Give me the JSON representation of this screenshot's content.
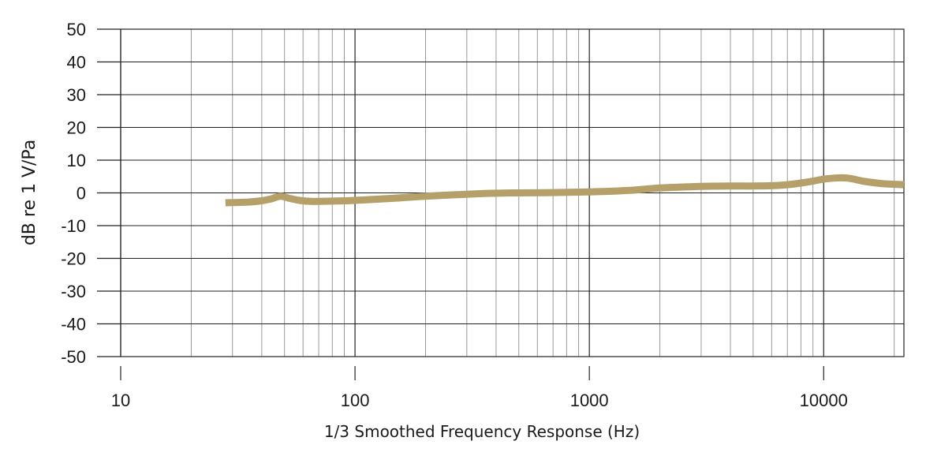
{
  "chart_data": {
    "type": "line",
    "title": "",
    "xlabel": "1/3 Smoothed Frequency Response (Hz)",
    "ylabel": "dB re 1 V/Pa",
    "xscale": "log",
    "xlim": [
      10,
      22000
    ],
    "ylim": [
      -50,
      50
    ],
    "xticks": [
      10,
      100,
      1000,
      10000
    ],
    "xtick_labels": [
      "10",
      "100",
      "1000",
      "10000"
    ],
    "yticks": [
      50,
      40,
      30,
      20,
      10,
      0,
      -10,
      -20,
      -30,
      -40,
      -50
    ],
    "ytick_labels": [
      "50",
      "40",
      "30",
      "20",
      "10",
      "0",
      "-10",
      "-20",
      "-30",
      "-40",
      "-50"
    ],
    "grid": true,
    "line_color": "#b5a06a",
    "series": [
      {
        "x": [
          28,
          35,
          40,
          44,
          48,
          52,
          58,
          65,
          80,
          100,
          150,
          200,
          300,
          400,
          500,
          700,
          1000,
          1500,
          2000,
          3000,
          4000,
          5000,
          6000,
          7000,
          8000,
          9000,
          10000,
          11000,
          12000,
          13000,
          15000,
          18000,
          22000
        ],
        "y": [
          -3.0,
          -2.8,
          -2.4,
          -1.8,
          -1.0,
          -1.6,
          -2.3,
          -2.6,
          -2.5,
          -2.3,
          -1.6,
          -1.0,
          -0.4,
          -0.1,
          0.0,
          0.1,
          0.3,
          0.8,
          1.5,
          2.0,
          2.1,
          2.1,
          2.2,
          2.5,
          3.0,
          3.6,
          4.2,
          4.5,
          4.6,
          4.4,
          3.5,
          2.8,
          2.5
        ]
      }
    ]
  }
}
